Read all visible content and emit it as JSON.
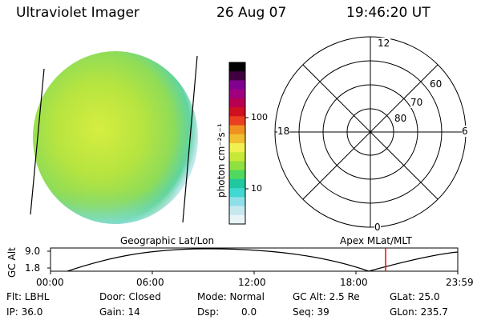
{
  "header": {
    "instrument": "Ultraviolet Imager",
    "date": "26 Aug 07",
    "time": "19:46:20 UT"
  },
  "colorbar": {
    "unit_label": "photon cm⁻²s⁻¹",
    "tick_labels": [
      "100",
      "10"
    ],
    "colors": [
      "#e8f4f8",
      "#c8e8f0",
      "#8ee0e8",
      "#40d8d0",
      "#20c8a0",
      "#50d860",
      "#90e040",
      "#c8e838",
      "#f0f050",
      "#f0c030",
      "#f09020",
      "#e84020",
      "#d01020",
      "#b80050",
      "#a00080",
      "#800090",
      "#400040",
      "#000000"
    ]
  },
  "polar_plot": {
    "hour_labels": [
      "12",
      "18",
      "6",
      "0"
    ],
    "lat_labels": [
      "60",
      "70",
      "80"
    ]
  },
  "timeline": {
    "left_label": "Geographic Lat/Lon",
    "right_label": "Apex MLat/MLT",
    "axis_title": "GC Alt",
    "y_ticks": [
      "9.0",
      "1.8"
    ],
    "x_ticks": [
      "00:00",
      "06:00",
      "12:00",
      "18:00",
      "23:59"
    ],
    "current_time_marker_color": "#ff0000"
  },
  "footer": {
    "filter": "Flt: LBHL",
    "ip": "IP: 36.0",
    "door": "Door: Closed",
    "gain": "Gain: 14",
    "mode": "Mode: Normal",
    "dsp_label": "Dsp:",
    "dsp_value": "0.0",
    "gc_alt": "GC Alt: 2.5 Re",
    "seq": "Seq: 39",
    "glat": "GLat: 25.0",
    "glon": "GLon: 235.7"
  }
}
